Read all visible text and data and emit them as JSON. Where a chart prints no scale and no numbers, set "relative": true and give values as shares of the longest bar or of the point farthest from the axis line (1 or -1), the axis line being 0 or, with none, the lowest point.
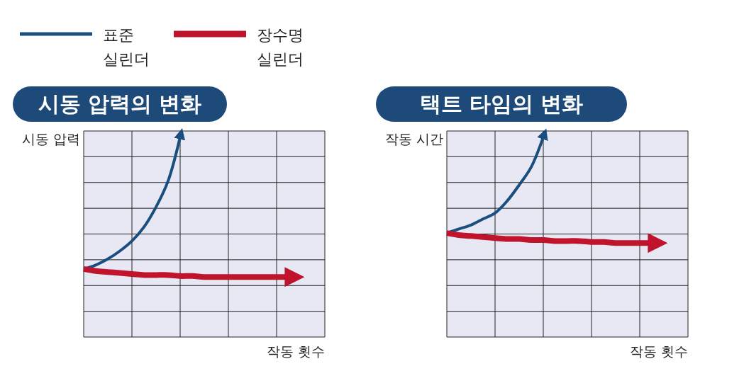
{
  "chart_data": [
    {
      "type": "line",
      "title": "시동 압력의 변화",
      "ylabel": "시동 압력",
      "xlabel": "작동 횟수",
      "relative": true,
      "grid": true,
      "legend": "top left",
      "marker": "none",
      "categories": [
        null,
        null,
        null,
        null,
        null,
        null,
        null,
        null,
        null,
        null,
        null,
        null,
        null,
        null,
        null,
        null,
        null,
        null,
        null,
        null,
        null
      ],
      "series": [
        {
          "name": "표준 실린더",
          "color": "#1a4e7e",
          "values": [
            0.34,
            0.36,
            0.39,
            0.43,
            0.48,
            0.55,
            0.65,
            0.78,
            1,
            null,
            null,
            null,
            null,
            null,
            null,
            null,
            null,
            null,
            null,
            null,
            null
          ]
        },
        {
          "name": "장수명 실린더",
          "color": "#c0142c",
          "values": [
            0.34,
            0.33,
            0.325,
            0.32,
            0.315,
            0.31,
            0.31,
            0.31,
            0.305,
            0.305,
            0.3,
            0.3,
            0.3,
            0.3,
            0.3,
            0.3,
            0.3,
            0.3,
            null,
            null,
            null
          ]
        }
      ]
    },
    {
      "type": "line",
      "title": "택트 타임의 변화",
      "ylabel": "작동 시간",
      "xlabel": "작동 횟수",
      "relative": true,
      "grid": true,
      "marker": "none",
      "categories": [
        null,
        null,
        null,
        null,
        null,
        null,
        null,
        null,
        null,
        null,
        null,
        null,
        null,
        null,
        null,
        null,
        null,
        null,
        null,
        null,
        null
      ],
      "series": [
        {
          "color": "#1a4e7e",
          "values": [
            0.52,
            0.54,
            0.56,
            0.59,
            0.62,
            0.68,
            0.76,
            0.85,
            1,
            null,
            null,
            null,
            null,
            null,
            null,
            null,
            null,
            null,
            null,
            null,
            null
          ]
        },
        {
          "color": "#c0142c",
          "values": [
            0.52,
            0.51,
            0.505,
            0.5,
            0.495,
            0.49,
            0.49,
            0.485,
            0.485,
            0.48,
            0.48,
            0.48,
            0.475,
            0.475,
            0.47,
            0.47,
            0.47,
            0.47,
            null,
            null,
            null
          ]
        }
      ]
    }
  ]
}
